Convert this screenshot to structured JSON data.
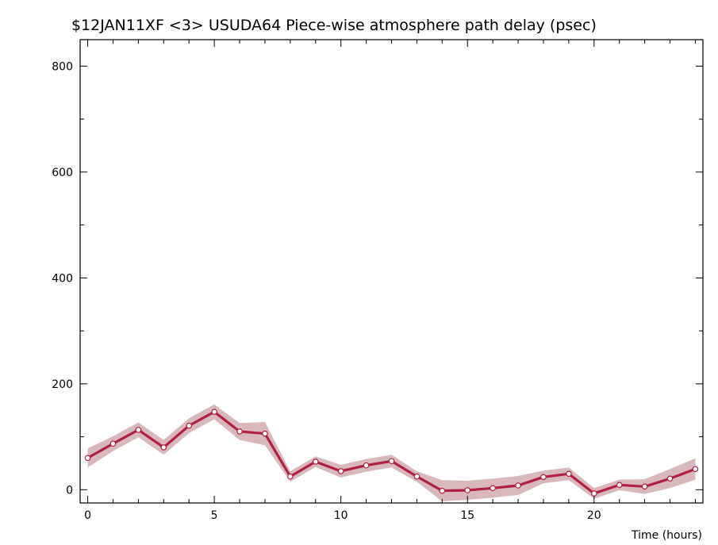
{
  "chart_data": {
    "type": "line",
    "title": "$12JAN11XF <3>   USUDA64    Piece-wise atmosphere path delay (psec)",
    "xlabel": "Time (hours)",
    "ylabel": "",
    "xlim": [
      -0.3,
      24.3
    ],
    "ylim": [
      -25,
      850
    ],
    "x_ticks": [
      0,
      5,
      10,
      15,
      20
    ],
    "y_ticks": [
      0,
      200,
      400,
      600,
      800
    ],
    "grid": false,
    "series": [
      {
        "x": [
          0,
          1,
          2,
          3,
          4,
          5,
          6,
          7,
          8,
          9,
          10,
          11,
          12,
          13,
          14,
          15,
          16,
          17,
          18,
          19,
          20,
          21,
          22,
          23,
          24
        ],
        "values": [
          60,
          87,
          113,
          80,
          121,
          147,
          110,
          106,
          25,
          53,
          35,
          46,
          54,
          25,
          -2,
          -1,
          3,
          8,
          24,
          30,
          -7,
          9,
          6,
          21,
          39
        ],
        "error": [
          18,
          14,
          14,
          14,
          14,
          14,
          16,
          22,
          10,
          10,
          12,
          12,
          12,
          10,
          20,
          18,
          18,
          18,
          12,
          12,
          10,
          10,
          14,
          18,
          20
        ],
        "color": "#b02040",
        "band_color": "#d9b8bc",
        "marker_color": "#ffffff"
      }
    ]
  }
}
